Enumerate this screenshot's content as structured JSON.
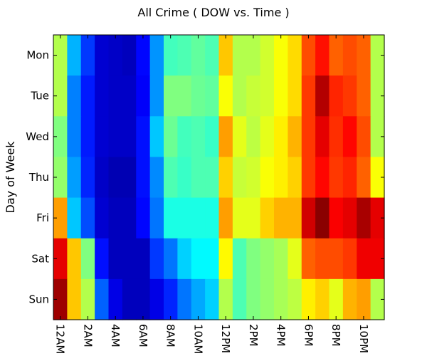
{
  "chart_data": {
    "type": "heatmap",
    "title": "All Crime ( DOW vs. Time )",
    "xlabel": "",
    "ylabel": "Day of Week",
    "rows": [
      "Mon",
      "Tue",
      "Wed",
      "Thu",
      "Fri",
      "Sat",
      "Sun"
    ],
    "x_tick_labels": [
      "12AM",
      "2AM",
      "4AM",
      "6AM",
      "8AM",
      "10AM",
      "12PM",
      "2PM",
      "4PM",
      "6PM",
      "8PM",
      "10PM"
    ],
    "hours": 24,
    "colormap": "jet",
    "value_range": [
      0,
      1
    ],
    "grid": false,
    "values": [
      [
        0.55,
        0.3,
        0.18,
        0.08,
        0.07,
        0.06,
        0.13,
        0.27,
        0.44,
        0.45,
        0.47,
        0.45,
        0.68,
        0.55,
        0.55,
        0.58,
        0.62,
        0.66,
        0.8,
        0.86,
        0.78,
        0.8,
        0.78,
        0.55
      ],
      [
        0.55,
        0.25,
        0.15,
        0.08,
        0.07,
        0.07,
        0.12,
        0.27,
        0.5,
        0.5,
        0.48,
        0.47,
        0.62,
        0.55,
        0.57,
        0.58,
        0.62,
        0.66,
        0.82,
        0.95,
        0.84,
        0.82,
        0.78,
        0.55
      ],
      [
        0.5,
        0.25,
        0.15,
        0.08,
        0.07,
        0.07,
        0.14,
        0.32,
        0.48,
        0.44,
        0.45,
        0.43,
        0.72,
        0.6,
        0.56,
        0.6,
        0.64,
        0.7,
        0.82,
        0.9,
        0.83,
        0.87,
        0.8,
        0.55
      ],
      [
        0.52,
        0.28,
        0.16,
        0.07,
        0.05,
        0.05,
        0.14,
        0.26,
        0.45,
        0.43,
        0.45,
        0.45,
        0.67,
        0.57,
        0.58,
        0.62,
        0.64,
        0.67,
        0.82,
        0.87,
        0.82,
        0.84,
        0.78,
        0.62
      ],
      [
        0.72,
        0.32,
        0.2,
        0.08,
        0.06,
        0.06,
        0.13,
        0.24,
        0.4,
        0.4,
        0.4,
        0.4,
        0.72,
        0.6,
        0.6,
        0.67,
        0.7,
        0.7,
        0.92,
        0.99,
        0.88,
        0.9,
        0.96,
        0.9
      ],
      [
        0.9,
        0.68,
        0.5,
        0.14,
        0.06,
        0.06,
        0.06,
        0.18,
        0.24,
        0.33,
        0.37,
        0.37,
        0.63,
        0.45,
        0.5,
        0.52,
        0.54,
        0.6,
        0.78,
        0.8,
        0.8,
        0.82,
        0.89,
        0.89
      ],
      [
        0.97,
        0.68,
        0.55,
        0.22,
        0.1,
        0.06,
        0.06,
        0.1,
        0.16,
        0.24,
        0.29,
        0.33,
        0.55,
        0.45,
        0.5,
        0.52,
        0.54,
        0.56,
        0.64,
        0.67,
        0.6,
        0.7,
        0.72,
        0.55
      ]
    ]
  }
}
